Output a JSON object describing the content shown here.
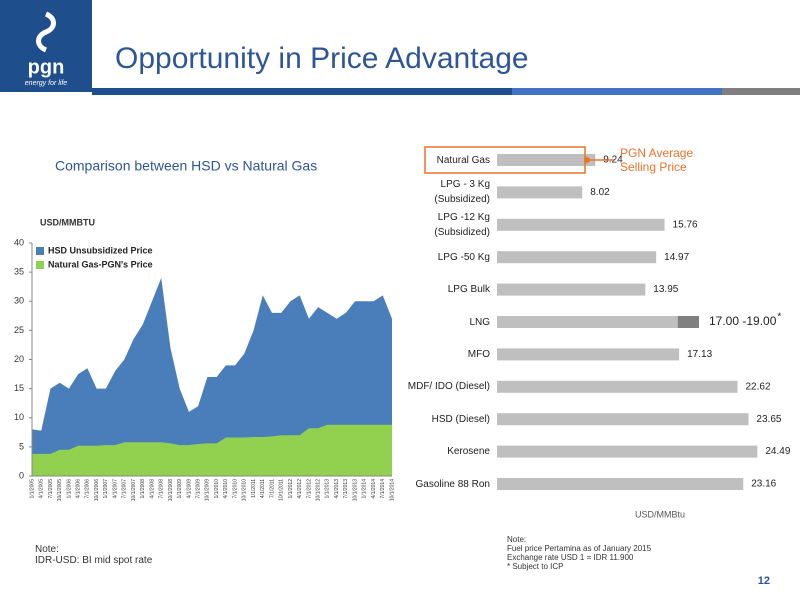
{
  "header": {
    "logo": "pgn",
    "tagline": "energy for life",
    "title": "Opportunity in Price Advantage",
    "page_number": "12"
  },
  "chart_data": [
    {
      "type": "area",
      "title": "Comparison between HSD vs Natural Gas",
      "ylabel": "USD/MMBTU",
      "categories": [
        "1/1/2005",
        "4/1/2005",
        "7/1/2005",
        "10/1/2005",
        "1/1/2006",
        "4/1/2006",
        "7/1/2006",
        "10/1/2006",
        "1/1/2007",
        "4/1/2007",
        "7/1/2007",
        "10/1/2007",
        "1/1/2008",
        "4/1/2008",
        "7/1/2008",
        "10/1/2008",
        "1/1/2009",
        "4/1/2009",
        "7/1/2009",
        "10/1/2009",
        "1/1/2010",
        "4/1/2010",
        "7/1/2010",
        "10/1/2010",
        "1/1/2011",
        "4/1/2011",
        "7/1/2011",
        "10/1/2011",
        "1/1/2012",
        "4/1/2012",
        "7/1/2012",
        "10/1/2012",
        "1/1/2013",
        "4/1/2013",
        "7/1/2013",
        "10/1/2013",
        "1/1/2014",
        "4/1/2014",
        "7/1/2014",
        "10/1/2014"
      ],
      "series": [
        {
          "name": "HSD Unsubsidized Price",
          "color": "#4a7ebb",
          "values": [
            8,
            7.8,
            15,
            16,
            15,
            17.5,
            18.5,
            15,
            15,
            18,
            20,
            23.5,
            26,
            30,
            34,
            22,
            15,
            11,
            12,
            17,
            17,
            19,
            19,
            21,
            25,
            31,
            28,
            28,
            30,
            31,
            27,
            29,
            28,
            27,
            28,
            30,
            30,
            30,
            31,
            27
          ]
        },
        {
          "name": "Natural Gas-PGN's Price",
          "color": "#92d050",
          "values": [
            3.8,
            3.8,
            3.8,
            4.5,
            4.5,
            5.2,
            5.2,
            5.2,
            5.3,
            5.3,
            5.8,
            5.8,
            5.8,
            5.8,
            5.8,
            5.6,
            5.3,
            5.3,
            5.5,
            5.6,
            5.6,
            6.6,
            6.6,
            6.6,
            6.7,
            6.7,
            6.8,
            7,
            7,
            7,
            8.2,
            8.2,
            8.8,
            8.8,
            8.8,
            8.8,
            8.8,
            8.8,
            8.8,
            8.8
          ]
        }
      ],
      "ylim": [
        0,
        40
      ],
      "yticks": [
        0,
        5,
        10,
        15,
        20,
        25,
        30,
        35,
        40
      ],
      "legend": "upper-left"
    },
    {
      "type": "hbar",
      "xlabel": "USD/MMBtu",
      "categories": [
        "Natural Gas",
        "LPG - 3 Kg\n(Subsidized)",
        "LPG -12  Kg\n(Subsidized)",
        "LPG -50 Kg",
        "LPG Bulk",
        "LNG",
        "MFO",
        "MDF/ IDO (Diesel)",
        "HSD (Diesel)",
        "Kerosene",
        "Gasoline 88 Ron"
      ],
      "values": [
        9.24,
        8.02,
        15.76,
        14.97,
        13.95,
        17,
        17.13,
        22.62,
        23.65,
        24.49,
        23.16
      ],
      "range_ends": [
        null,
        null,
        null,
        null,
        null,
        19,
        null,
        null,
        null,
        null,
        null
      ],
      "value_labels": [
        "9.24",
        "8.02",
        "15.76",
        "14.97",
        "13.95",
        "17.00 -19.00",
        "17.13",
        "22.62",
        "23.65",
        "24.49",
        "23.16"
      ],
      "value_note": "*",
      "color": "#bfbfbf",
      "range_color": "#808080",
      "xlim": [
        0,
        28.5
      ],
      "highlight": {
        "index": 0,
        "color": "#e8732a",
        "label": "PGN Average\nSelling Price"
      }
    }
  ],
  "notes": {
    "left": "Note:\nIDR-USD: BI mid spot rate",
    "right": "Note:\nFuel price Pertamina  as of  January 2015\nExchange rate USD 1 = IDR 11.900\n* Subject to ICP"
  }
}
